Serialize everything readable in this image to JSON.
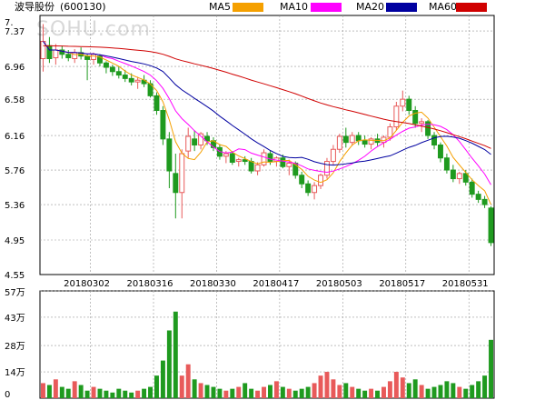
{
  "header": {
    "stock_name": "波导股份",
    "stock_code": "(600130)",
    "watermark": "SOHU.com"
  },
  "legend": [
    {
      "label": "MA5",
      "color": "#f5a000"
    },
    {
      "label": "MA10",
      "color": "#ff00ff"
    },
    {
      "label": "MA20",
      "color": "#0000a0"
    },
    {
      "label": "MA60",
      "color": "#d00000"
    }
  ],
  "colors": {
    "up": "#e85a5a",
    "down": "#1f9a1f",
    "grid": "#999999"
  },
  "chart_data": {
    "type": "candlestick",
    "price_axis": {
      "ticks": [
        "7.37",
        "6.96",
        "6.58",
        "6.16",
        "5.76",
        "5.36",
        "4.95",
        "4.55"
      ],
      "values": [
        7.37,
        6.96,
        6.58,
        6.16,
        5.76,
        5.36,
        4.95,
        4.55
      ],
      "top_label": "7."
    },
    "date_labels": [
      "20180302",
      "20180316",
      "20180330",
      "20180417",
      "20180503",
      "20180517",
      "20180531"
    ],
    "date_label_index": [
      8,
      18,
      28,
      38,
      48,
      58,
      68
    ],
    "volume_axis": {
      "ticks": [
        "57万",
        "43万",
        "28万",
        "14万",
        "0"
      ],
      "values": [
        57,
        43,
        28,
        14,
        0
      ],
      "unit": "万"
    },
    "candles": [
      {
        "o": 7.05,
        "h": 7.45,
        "l": 6.9,
        "c": 7.25
      },
      {
        "o": 7.2,
        "h": 7.3,
        "l": 7.0,
        "c": 7.05
      },
      {
        "o": 7.06,
        "h": 7.22,
        "l": 6.98,
        "c": 7.15
      },
      {
        "o": 7.15,
        "h": 7.2,
        "l": 7.05,
        "c": 7.1
      },
      {
        "o": 7.1,
        "h": 7.15,
        "l": 7.02,
        "c": 7.06
      },
      {
        "o": 7.05,
        "h": 7.16,
        "l": 7.0,
        "c": 7.12
      },
      {
        "o": 7.12,
        "h": 7.18,
        "l": 7.04,
        "c": 7.08
      },
      {
        "o": 7.08,
        "h": 7.1,
        "l": 6.8,
        "c": 7.04
      },
      {
        "o": 7.04,
        "h": 7.12,
        "l": 6.98,
        "c": 7.1
      },
      {
        "o": 7.08,
        "h": 7.1,
        "l": 6.96,
        "c": 7.0
      },
      {
        "o": 7.0,
        "h": 7.02,
        "l": 6.88,
        "c": 6.95
      },
      {
        "o": 6.95,
        "h": 6.98,
        "l": 6.85,
        "c": 6.9
      },
      {
        "o": 6.9,
        "h": 6.96,
        "l": 6.82,
        "c": 6.86
      },
      {
        "o": 6.86,
        "h": 6.92,
        "l": 6.78,
        "c": 6.82
      },
      {
        "o": 6.82,
        "h": 6.88,
        "l": 6.74,
        "c": 6.78
      },
      {
        "o": 6.78,
        "h": 6.84,
        "l": 6.7,
        "c": 6.8
      },
      {
        "o": 6.8,
        "h": 6.86,
        "l": 6.72,
        "c": 6.76
      },
      {
        "o": 6.76,
        "h": 6.8,
        "l": 6.6,
        "c": 6.62
      },
      {
        "o": 6.62,
        "h": 6.66,
        "l": 6.4,
        "c": 6.45
      },
      {
        "o": 6.45,
        "h": 6.5,
        "l": 6.05,
        "c": 6.12
      },
      {
        "o": 6.12,
        "h": 6.2,
        "l": 5.55,
        "c": 5.75
      },
      {
        "o": 5.72,
        "h": 5.95,
        "l": 5.2,
        "c": 5.5
      },
      {
        "o": 5.5,
        "h": 6.0,
        "l": 5.2,
        "c": 5.95
      },
      {
        "o": 5.98,
        "h": 6.25,
        "l": 5.9,
        "c": 6.15
      },
      {
        "o": 6.12,
        "h": 6.22,
        "l": 5.98,
        "c": 6.05
      },
      {
        "o": 6.05,
        "h": 6.2,
        "l": 6.0,
        "c": 6.18
      },
      {
        "o": 6.15,
        "h": 6.2,
        "l": 6.05,
        "c": 6.1
      },
      {
        "o": 6.1,
        "h": 6.14,
        "l": 5.98,
        "c": 6.02
      },
      {
        "o": 6.02,
        "h": 6.06,
        "l": 5.88,
        "c": 5.92
      },
      {
        "o": 5.92,
        "h": 5.98,
        "l": 5.84,
        "c": 5.95
      },
      {
        "o": 5.95,
        "h": 5.98,
        "l": 5.82,
        "c": 5.85
      },
      {
        "o": 5.86,
        "h": 5.9,
        "l": 5.8,
        "c": 5.88
      },
      {
        "o": 5.88,
        "h": 5.92,
        "l": 5.82,
        "c": 5.86
      },
      {
        "o": 5.86,
        "h": 5.9,
        "l": 5.72,
        "c": 5.75
      },
      {
        "o": 5.75,
        "h": 5.85,
        "l": 5.7,
        "c": 5.82
      },
      {
        "o": 5.82,
        "h": 6.0,
        "l": 5.8,
        "c": 5.96
      },
      {
        "o": 5.95,
        "h": 5.98,
        "l": 5.82,
        "c": 5.86
      },
      {
        "o": 5.86,
        "h": 5.92,
        "l": 5.8,
        "c": 5.9
      },
      {
        "o": 5.9,
        "h": 5.94,
        "l": 5.78,
        "c": 5.8
      },
      {
        "o": 5.8,
        "h": 5.88,
        "l": 5.7,
        "c": 5.84
      },
      {
        "o": 5.84,
        "h": 5.86,
        "l": 5.66,
        "c": 5.7
      },
      {
        "o": 5.7,
        "h": 5.74,
        "l": 5.55,
        "c": 5.6
      },
      {
        "o": 5.6,
        "h": 5.64,
        "l": 5.46,
        "c": 5.5
      },
      {
        "o": 5.5,
        "h": 5.62,
        "l": 5.42,
        "c": 5.58
      },
      {
        "o": 5.58,
        "h": 5.72,
        "l": 5.54,
        "c": 5.7
      },
      {
        "o": 5.7,
        "h": 5.9,
        "l": 5.66,
        "c": 5.86
      },
      {
        "o": 5.86,
        "h": 6.05,
        "l": 5.82,
        "c": 6.0
      },
      {
        "o": 6.0,
        "h": 6.18,
        "l": 5.96,
        "c": 6.15
      },
      {
        "o": 6.15,
        "h": 6.25,
        "l": 6.02,
        "c": 6.08
      },
      {
        "o": 6.08,
        "h": 6.2,
        "l": 6.04,
        "c": 6.16
      },
      {
        "o": 6.16,
        "h": 6.2,
        "l": 6.05,
        "c": 6.1
      },
      {
        "o": 6.1,
        "h": 6.16,
        "l": 6.02,
        "c": 6.06
      },
      {
        "o": 6.06,
        "h": 6.14,
        "l": 6.0,
        "c": 6.12
      },
      {
        "o": 6.12,
        "h": 6.18,
        "l": 6.04,
        "c": 6.08
      },
      {
        "o": 6.08,
        "h": 6.16,
        "l": 6.02,
        "c": 6.14
      },
      {
        "o": 6.14,
        "h": 6.3,
        "l": 6.1,
        "c": 6.26
      },
      {
        "o": 6.26,
        "h": 6.55,
        "l": 6.22,
        "c": 6.5
      },
      {
        "o": 6.5,
        "h": 6.68,
        "l": 6.44,
        "c": 6.58
      },
      {
        "o": 6.58,
        "h": 6.62,
        "l": 6.4,
        "c": 6.45
      },
      {
        "o": 6.45,
        "h": 6.5,
        "l": 6.25,
        "c": 6.3
      },
      {
        "o": 6.3,
        "h": 6.36,
        "l": 6.2,
        "c": 6.32
      },
      {
        "o": 6.32,
        "h": 6.34,
        "l": 6.12,
        "c": 6.16
      },
      {
        "o": 6.16,
        "h": 6.2,
        "l": 6.0,
        "c": 6.05
      },
      {
        "o": 6.05,
        "h": 6.08,
        "l": 5.85,
        "c": 5.9
      },
      {
        "o": 5.9,
        "h": 5.95,
        "l": 5.72,
        "c": 5.76
      },
      {
        "o": 5.76,
        "h": 5.82,
        "l": 5.62,
        "c": 5.66
      },
      {
        "o": 5.66,
        "h": 5.74,
        "l": 5.6,
        "c": 5.72
      },
      {
        "o": 5.72,
        "h": 5.76,
        "l": 5.58,
        "c": 5.62
      },
      {
        "o": 5.62,
        "h": 5.66,
        "l": 5.44,
        "c": 5.48
      },
      {
        "o": 5.48,
        "h": 5.52,
        "l": 5.38,
        "c": 5.42
      },
      {
        "o": 5.42,
        "h": 5.46,
        "l": 5.32,
        "c": 5.36
      },
      {
        "o": 5.32,
        "h": 5.34,
        "l": 4.88,
        "c": 4.92
      }
    ],
    "volume": [
      8,
      7,
      10,
      6,
      5,
      9,
      7,
      4,
      6,
      5,
      4,
      3,
      5,
      4,
      3,
      4,
      5,
      6,
      12,
      20,
      36,
      46,
      12,
      18,
      10,
      8,
      7,
      6,
      5,
      4,
      5,
      6,
      8,
      5,
      4,
      6,
      7,
      9,
      6,
      5,
      4,
      5,
      6,
      8,
      12,
      14,
      10,
      7,
      8,
      6,
      5,
      4,
      5,
      4,
      6,
      9,
      14,
      11,
      8,
      10,
      7,
      5,
      6,
      7,
      9,
      8,
      6,
      5,
      7,
      9,
      12,
      31
    ]
  }
}
